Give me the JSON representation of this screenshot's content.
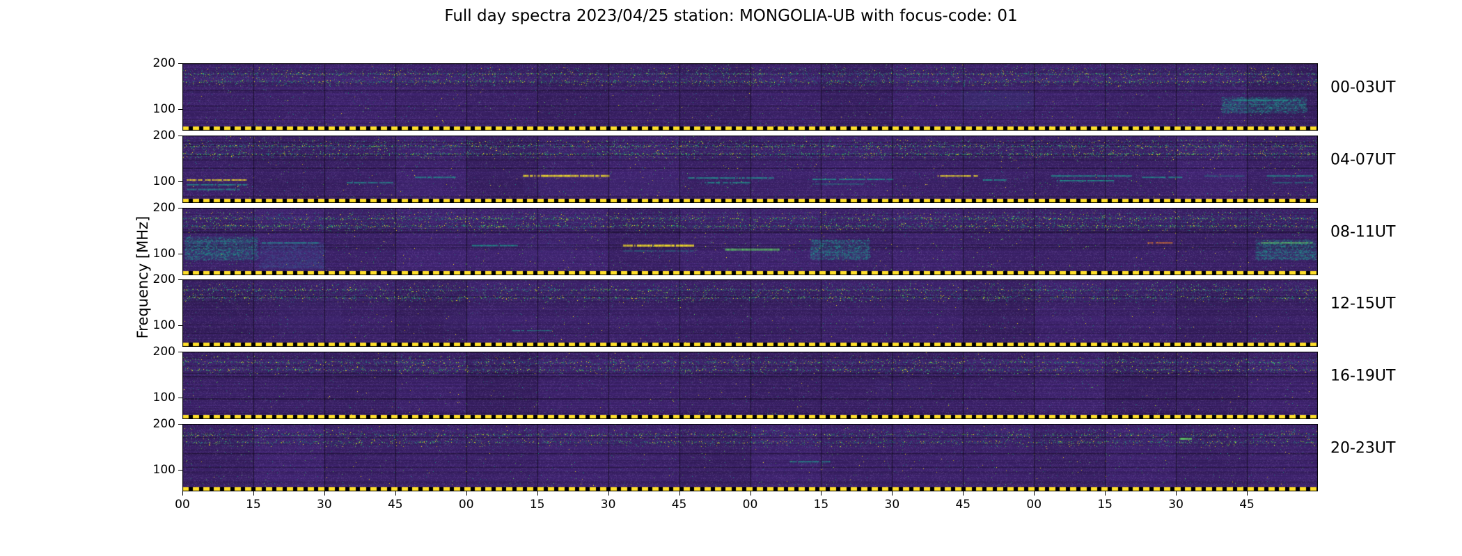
{
  "chart_data": {
    "type": "heatmap",
    "title": "Full day spectra 2023/04/25 station: MONGOLIA-UB with focus-code: 01",
    "xlabel": "",
    "ylabel": "Frequency [MHz]",
    "date": "2023/04/25",
    "station": "MONGOLIA-UB",
    "focus_code": "01",
    "colormap": "viridis",
    "freq_unit": "MHz",
    "segments_per_row": 16,
    "minutes_per_segment": 15,
    "row_duration_hours": 4,
    "y_ticks": [
      {
        "label": "200",
        "value": 200,
        "fraction": 0.0
      },
      {
        "label": "100",
        "value": 100,
        "fraction": 0.68
      }
    ],
    "x_ticks": [
      "00",
      "15",
      "30",
      "45",
      "00",
      "15",
      "30",
      "45",
      "00",
      "15",
      "30",
      "45",
      "00",
      "15",
      "30",
      "45"
    ],
    "palette": {
      "background": "#371f62",
      "dim": "#4a3580",
      "blue": "#3b528b",
      "teal": "#21918c",
      "green": "#5ec962",
      "yellow": "#fde725",
      "orange": "#d9742b",
      "dash": "#ffdf29"
    },
    "rows": [
      {
        "label": "00-03UT",
        "seed": 137,
        "noise": 1.0,
        "band": 1.1,
        "features": [
          {
            "type": "patch",
            "x0": 0.685,
            "x1": 0.75,
            "y": 0.55,
            "h": 0.28,
            "color": "blue"
          },
          {
            "type": "block",
            "x0": 0.915,
            "x1": 0.99,
            "y": 0.62,
            "h": 0.24,
            "color": "teal"
          },
          {
            "type": "line",
            "x0": 0.925,
            "x1": 0.985,
            "y": 0.55,
            "h": 2,
            "color": "teal"
          }
        ]
      },
      {
        "label": "04-07UT",
        "seed": 211,
        "noise": 1.2,
        "band": 1.2,
        "features": [
          {
            "type": "line",
            "x0": 0.004,
            "x1": 0.056,
            "y": 0.66,
            "h": 2,
            "color": "yellow"
          },
          {
            "type": "line",
            "x0": 0.004,
            "x1": 0.056,
            "y": 0.73,
            "h": 2,
            "color": "teal"
          },
          {
            "type": "line",
            "x0": 0.004,
            "x1": 0.05,
            "y": 0.8,
            "h": 2,
            "color": "teal"
          },
          {
            "type": "line",
            "x0": 0.145,
            "x1": 0.185,
            "y": 0.7,
            "h": 2,
            "color": "teal"
          },
          {
            "type": "line",
            "x0": 0.205,
            "x1": 0.24,
            "y": 0.62,
            "h": 2,
            "color": "teal"
          },
          {
            "type": "patch",
            "x0": 0.16,
            "x1": 0.23,
            "y": 0.78,
            "h": 0.25,
            "color": "dim"
          },
          {
            "type": "line",
            "x0": 0.3,
            "x1": 0.375,
            "y": 0.6,
            "h": 3,
            "color": "yellow"
          },
          {
            "type": "patch",
            "x0": 0.3,
            "x1": 0.44,
            "y": 0.74,
            "h": 0.28,
            "color": "dim"
          },
          {
            "type": "line",
            "x0": 0.445,
            "x1": 0.52,
            "y": 0.63,
            "h": 2,
            "color": "teal"
          },
          {
            "type": "line",
            "x0": 0.46,
            "x1": 0.5,
            "y": 0.7,
            "h": 2,
            "color": "teal"
          },
          {
            "type": "line",
            "x0": 0.555,
            "x1": 0.625,
            "y": 0.65,
            "h": 2,
            "color": "teal"
          },
          {
            "type": "line",
            "x0": 0.555,
            "x1": 0.6,
            "y": 0.72,
            "h": 1,
            "color": "teal"
          },
          {
            "type": "line",
            "x0": 0.665,
            "x1": 0.7,
            "y": 0.6,
            "h": 2,
            "color": "yellow"
          },
          {
            "type": "line",
            "x0": 0.705,
            "x1": 0.725,
            "y": 0.66,
            "h": 2,
            "color": "teal"
          },
          {
            "type": "line",
            "x0": 0.765,
            "x1": 0.835,
            "y": 0.6,
            "h": 2,
            "color": "teal"
          },
          {
            "type": "line",
            "x0": 0.77,
            "x1": 0.82,
            "y": 0.67,
            "h": 2,
            "color": "teal"
          },
          {
            "type": "line",
            "x0": 0.845,
            "x1": 0.88,
            "y": 0.62,
            "h": 2,
            "color": "teal"
          },
          {
            "type": "line",
            "x0": 0.9,
            "x1": 0.935,
            "y": 0.6,
            "h": 1,
            "color": "teal"
          },
          {
            "type": "line",
            "x0": 0.955,
            "x1": 0.995,
            "y": 0.6,
            "h": 2,
            "color": "teal"
          },
          {
            "type": "line",
            "x0": 0.96,
            "x1": 0.995,
            "y": 0.7,
            "h": 1,
            "color": "teal"
          }
        ]
      },
      {
        "label": "08-11UT",
        "seed": 313,
        "noise": 1.2,
        "band": 1.2,
        "features": [
          {
            "type": "block",
            "x0": 0.002,
            "x1": 0.066,
            "y": 0.6,
            "h": 0.35,
            "color": "teal"
          },
          {
            "type": "block",
            "x0": 0.068,
            "x1": 0.125,
            "y": 0.7,
            "h": 0.38,
            "color": "blue"
          },
          {
            "type": "line",
            "x0": 0.07,
            "x1": 0.12,
            "y": 0.52,
            "h": 2,
            "color": "teal"
          },
          {
            "type": "line",
            "x0": 0.255,
            "x1": 0.295,
            "y": 0.56,
            "h": 2,
            "color": "teal"
          },
          {
            "type": "patch",
            "x0": 0.3,
            "x1": 0.345,
            "y": 0.65,
            "h": 0.3,
            "color": "dim"
          },
          {
            "type": "line",
            "x0": 0.388,
            "x1": 0.45,
            "y": 0.56,
            "h": 3,
            "color": "yellow"
          },
          {
            "type": "line",
            "x0": 0.388,
            "x1": 0.45,
            "y": 0.64,
            "h": 1,
            "color": "teal"
          },
          {
            "type": "line",
            "x0": 0.478,
            "x1": 0.525,
            "y": 0.62,
            "h": 3,
            "color": "green"
          },
          {
            "type": "block",
            "x0": 0.553,
            "x1": 0.605,
            "y": 0.62,
            "h": 0.3,
            "color": "teal"
          },
          {
            "type": "line",
            "x0": 0.85,
            "x1": 0.872,
            "y": 0.52,
            "h": 2,
            "color": "orange"
          },
          {
            "type": "block",
            "x0": 0.945,
            "x1": 0.998,
            "y": 0.62,
            "h": 0.3,
            "color": "teal"
          },
          {
            "type": "line",
            "x0": 0.95,
            "x1": 0.995,
            "y": 0.52,
            "h": 2,
            "color": "green"
          }
        ]
      },
      {
        "label": "12-15UT",
        "seed": 421,
        "noise": 0.9,
        "band": 1.0,
        "features": [
          {
            "type": "patch",
            "x0": 0.085,
            "x1": 0.14,
            "y": 0.58,
            "h": 0.6,
            "color": "dim"
          },
          {
            "type": "patch",
            "x0": 0.23,
            "x1": 0.262,
            "y": 0.6,
            "h": 0.3,
            "color": "dim"
          },
          {
            "type": "line",
            "x0": 0.29,
            "x1": 0.325,
            "y": 0.76,
            "h": 1,
            "color": "teal"
          }
        ]
      },
      {
        "label": "16-19UT",
        "seed": 523,
        "noise": 0.8,
        "band": 1.0,
        "features": [
          {
            "type": "patch",
            "x0": 0.61,
            "x1": 0.66,
            "y": 0.55,
            "h": 0.25,
            "color": "dim"
          }
        ]
      },
      {
        "label": "20-23UT",
        "seed": 631,
        "noise": 0.8,
        "band": 0.9,
        "features": [
          {
            "type": "line",
            "x0": 0.535,
            "x1": 0.57,
            "y": 0.56,
            "h": 2,
            "color": "teal"
          },
          {
            "type": "line",
            "x0": 0.878,
            "x1": 0.888,
            "y": 0.22,
            "h": 3,
            "color": "green"
          }
        ]
      }
    ]
  }
}
